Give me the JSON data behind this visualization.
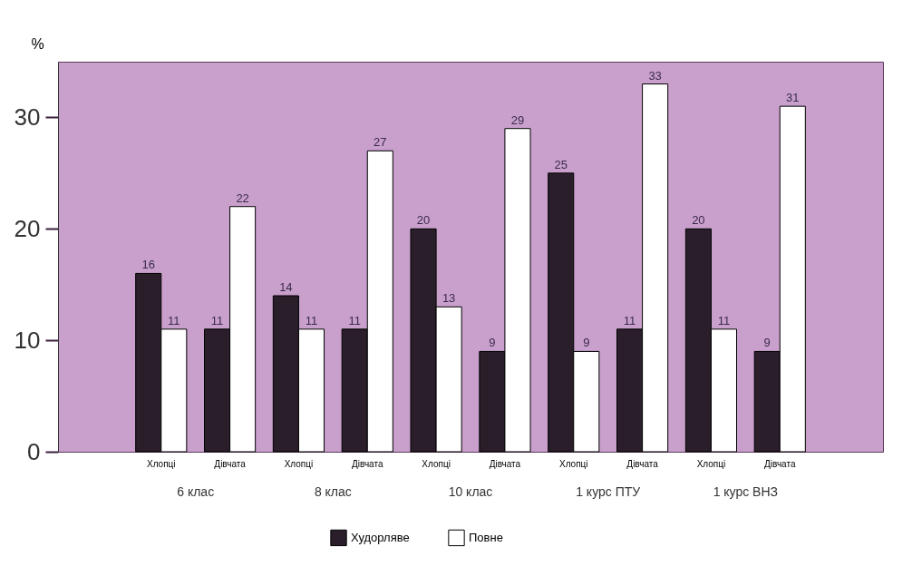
{
  "chart_data": {
    "type": "bar",
    "ylabel": "%",
    "categories": [
      "Хлопці",
      "Дівчата",
      "Хлопці",
      "Дівчата",
      "Хлопці",
      "Дівчата",
      "Хлопці",
      "Дівчата",
      "Хлопці",
      "Дівчата"
    ],
    "series": [
      {
        "name": "Худорляве",
        "color": "#2a1e2a",
        "values": [
          16,
          11,
          14,
          11,
          20,
          9,
          25,
          11,
          20,
          9
        ]
      },
      {
        "name": "Повне",
        "color": "#ffffff",
        "values": [
          11,
          22,
          11,
          27,
          13,
          29,
          9,
          33,
          11,
          31
        ]
      }
    ],
    "annotations": [
      "6 клас",
      "8 клас",
      "10 клас",
      "1 курс ПТУ",
      "1 курс ВНЗ"
    ],
    "ylim": [
      0,
      35
    ],
    "yticks": [
      0,
      10,
      20,
      30
    ],
    "data_labels": true,
    "grid": false,
    "legend": "bottom"
  }
}
